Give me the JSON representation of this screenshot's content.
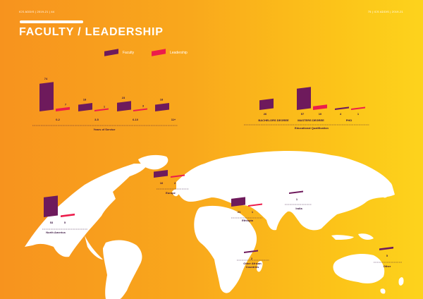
{
  "header": {
    "left": "ICS ADDIS | 2019-21 | 44",
    "right": "75 | ICS ADDIS | 2019-21"
  },
  "title": "FACULTY / LEADERSHIP",
  "legend": [
    {
      "label": "Faculty",
      "color": "#6e1a5c"
    },
    {
      "label": "Leadership",
      "color": "#ec1c4b"
    }
  ],
  "colors": {
    "faculty": "#6e1a5c",
    "leadership": "#ec1c4b",
    "map": "#ffffff"
  },
  "chart_data": [
    {
      "type": "bar",
      "xlabel": "Years of Service",
      "categories": [
        "0-2",
        "3-5",
        "6-10",
        "11+"
      ],
      "series": [
        {
          "name": "Faculty",
          "values": [
            74,
            18,
            23,
            18
          ]
        },
        {
          "name": "Leadership",
          "values": [
            7,
            1,
            3,
            null
          ]
        }
      ]
    },
    {
      "type": "bar",
      "xlabel": "Educational Qualification",
      "categories": [
        "BACHELORS DEGREE",
        "MASTERS DEGREE",
        "PHD"
      ],
      "series": [
        {
          "name": "Faculty",
          "values": [
            26,
            57,
            4
          ]
        },
        {
          "name": "Leadership",
          "values": [
            null,
            10,
            1
          ]
        }
      ]
    },
    {
      "type": "bar",
      "categories": [
        "North America",
        "Europe",
        "Ethiopia",
        "India",
        "Other African Countries",
        "Other"
      ],
      "series": [
        {
          "name": "Faculty",
          "values": [
            53,
            16,
            21,
            1,
            2,
            5
          ]
        },
        {
          "name": "Leadership",
          "values": [
            5,
            2,
            1,
            null,
            null,
            null
          ]
        }
      ]
    }
  ]
}
